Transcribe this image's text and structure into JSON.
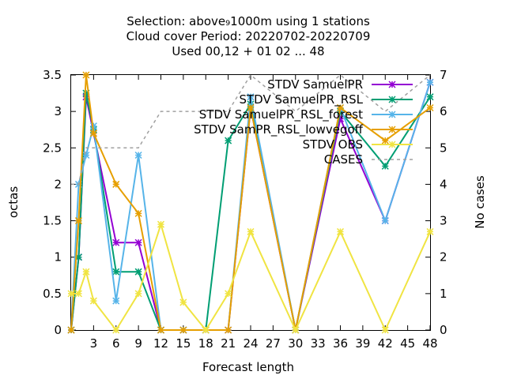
{
  "chart_data": {
    "type": "line",
    "title_lines": [
      "Selection: above₉1000m using     1 stations",
      "Cloud cover   Period: 20220702-20220709",
      "Used  00,12  + 01 02 ... 48"
    ],
    "xlabel": "Forecast length",
    "ylabel": "octas",
    "y2label": "No cases",
    "xlim": [
      0,
      48
    ],
    "ylim": [
      0,
      3.5
    ],
    "y2lim": [
      0,
      7
    ],
    "x_ticks": [
      3,
      6,
      9,
      12,
      15,
      18,
      21,
      24,
      27,
      30,
      33,
      36,
      39,
      42,
      45,
      48
    ],
    "y_ticks": [
      "0",
      "0.5",
      "1",
      "1.5",
      "2",
      "2.5",
      "3",
      "3.5"
    ],
    "y2_ticks": [
      "0",
      "1",
      "2",
      "3",
      "4",
      "5",
      "6",
      "7"
    ],
    "grid": false,
    "legend_position": "top-right",
    "series": [
      {
        "name": "STDV SamuelPR",
        "color": "#9400d3",
        "axis": "y",
        "x": [
          0,
          1,
          2,
          3,
          6,
          9,
          12,
          15,
          18,
          21,
          24,
          30,
          36,
          42,
          48
        ],
        "y": [
          0,
          1.0,
          3.2,
          2.7,
          1.2,
          1.2,
          0,
          0,
          0,
          0,
          3.05,
          0,
          2.9,
          1.5,
          3.4
        ]
      },
      {
        "name": "STDV SamuelPR_RSL",
        "color": "#009e73",
        "axis": "y",
        "x": [
          0,
          1,
          2,
          3,
          6,
          9,
          12,
          15,
          18,
          21,
          24,
          30,
          36,
          42,
          48
        ],
        "y": [
          0,
          1.0,
          3.25,
          2.75,
          0.8,
          0.8,
          0,
          0,
          0,
          2.6,
          3.1,
          0,
          3.0,
          2.25,
          3.2
        ]
      },
      {
        "name": "STDV SamuelPR_RSL_forest",
        "color": "#56b4e9",
        "axis": "y",
        "x": [
          0,
          1,
          2,
          3,
          6,
          9,
          12,
          15,
          18,
          21,
          24,
          30,
          36,
          42,
          48
        ],
        "y": [
          0,
          2.0,
          2.4,
          2.8,
          0.4,
          2.4,
          0,
          0,
          0,
          0,
          3.2,
          0,
          3.05,
          1.5,
          3.4
        ]
      },
      {
        "name": "STDV SamPR_RSL_lowvegoff",
        "color": "#e69f00",
        "axis": "y",
        "x": [
          0,
          1,
          2,
          3,
          6,
          9,
          12,
          15,
          18,
          21,
          24,
          30,
          36,
          42,
          48
        ],
        "y": [
          0,
          1.5,
          3.5,
          2.7,
          2.0,
          1.6,
          0,
          0,
          0,
          0,
          3.05,
          0,
          3.05,
          2.6,
          3.05
        ]
      },
      {
        "name": "STDV OBS",
        "color": "#f0e442",
        "axis": "y",
        "x": [
          0,
          1,
          2,
          3,
          6,
          9,
          12,
          15,
          18,
          21,
          24,
          30,
          36,
          42,
          48
        ],
        "y": [
          0.5,
          0.5,
          0.8,
          0.4,
          0,
          0.5,
          1.45,
          0.38,
          0,
          0.5,
          1.35,
          0,
          1.35,
          0,
          1.35
        ]
      },
      {
        "name": "CASES",
        "color": "#a0a0a0",
        "axis": "y2",
        "dashed": true,
        "x": [
          0,
          1,
          2,
          3,
          6,
          9,
          12,
          15,
          18,
          21,
          24,
          30,
          36,
          42,
          48
        ],
        "y": [
          4,
          4,
          5,
          5,
          5,
          5,
          6,
          6,
          6,
          6,
          7,
          6,
          7,
          6,
          7
        ]
      }
    ]
  }
}
